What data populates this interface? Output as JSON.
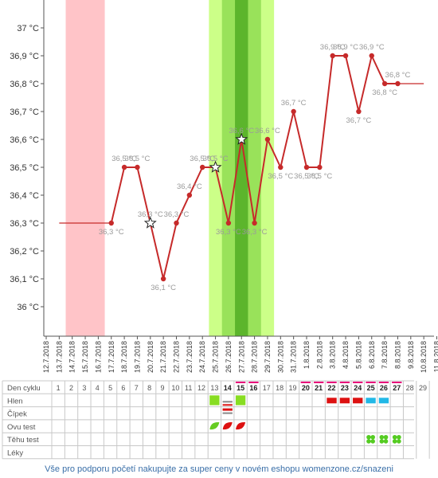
{
  "chart_data": {
    "type": "line",
    "y_axis": {
      "min": 36.0,
      "max": 37.0,
      "unit": "°C",
      "tick_labels": [
        "37 °C",
        "36,9 °C",
        "36,8 °C",
        "36,7 °C",
        "36,6 °C",
        "36,5 °C",
        "36,4 °C",
        "36,3 °C",
        "36,2 °C",
        "36,1 °C",
        "36 °C"
      ]
    },
    "x": [
      "12.7.2018",
      "13.7.2018",
      "14.7.2018",
      "15.7.2018",
      "16.7.2018",
      "17.7.2018",
      "18.7.2018",
      "19.7.2018",
      "20.7.2018",
      "21.7.2018",
      "22.7.2018",
      "23.7.2018",
      "24.7.2018",
      "25.7.2018",
      "26.7.2018",
      "27.7.2018",
      "28.7.2018",
      "29.7.2018",
      "30.7.2018",
      "31.7.2018",
      "1.8.2018",
      "2.8.2018",
      "3.8.2018",
      "4.8.2018",
      "5.8.2018",
      "6.8.2018",
      "7.8.2018",
      "8.8.2018",
      "9.8.2018",
      "10.8.2018",
      "11.8.2018"
    ],
    "temperatures": [
      {
        "date": "17.7.2018",
        "value": 36.3,
        "label": "36,3 °C"
      },
      {
        "date": "18.7.2018",
        "value": 36.5,
        "label": "36,5 °C"
      },
      {
        "date": "19.7.2018",
        "value": 36.5,
        "label": "36,5 °C"
      },
      {
        "date": "20.7.2018",
        "value": 36.3,
        "label": "36,3 °C",
        "marker": "star"
      },
      {
        "date": "21.7.2018",
        "value": 36.1,
        "label": "36,1 °C"
      },
      {
        "date": "22.7.2018",
        "value": 36.3,
        "label": "36,3 °C"
      },
      {
        "date": "23.7.2018",
        "value": 36.4,
        "label": "36,4 °C"
      },
      {
        "date": "24.7.2018",
        "value": 36.5,
        "label": "36,5 °C"
      },
      {
        "date": "25.7.2018",
        "value": 36.5,
        "label": "36,5 °C",
        "marker": "star"
      },
      {
        "date": "26.7.2018",
        "value": 36.3,
        "label": "36,3 °C"
      },
      {
        "date": "27.7.2018",
        "value": 36.6,
        "label": "36,6 °C",
        "marker": "star"
      },
      {
        "date": "28.7.2018",
        "value": 36.3,
        "label": "36,3 °C"
      },
      {
        "date": "29.7.2018",
        "value": 36.6,
        "label": "36,6 °C"
      },
      {
        "date": "30.7.2018",
        "value": 36.5,
        "label": "36,5 °C"
      },
      {
        "date": "31.7.2018",
        "value": 36.7,
        "label": "36,7 °C"
      },
      {
        "date": "1.8.2018",
        "value": 36.5,
        "label": "36,5 °C"
      },
      {
        "date": "2.8.2018",
        "value": 36.5,
        "label": "36,5 °C"
      },
      {
        "date": "3.8.2018",
        "value": 36.9,
        "label": "36,9 °C"
      },
      {
        "date": "4.8.2018",
        "value": 36.9,
        "label": "36,9 °C"
      },
      {
        "date": "5.8.2018",
        "value": 36.7,
        "label": "36,7 °C"
      },
      {
        "date": "6.8.2018",
        "value": 36.9,
        "label": "36,9 °C"
      },
      {
        "date": "7.8.2018",
        "value": 36.8,
        "label": "36,8 °C"
      },
      {
        "date": "8.8.2018",
        "value": 36.8,
        "label": "36,8 °C"
      }
    ],
    "coverline_left": {
      "from": "13.7.2018",
      "to": "17.7.2018",
      "value": 36.3
    },
    "coverline_right": {
      "from": "8.8.2018",
      "to": "10.8.2018",
      "value": 36.8
    },
    "bands": [
      {
        "from": "13.7.2018",
        "to": "15.7.2018",
        "color": "#ffc4c8",
        "kind": "period"
      },
      {
        "from": "24.7.2018",
        "to": "28.7.2018",
        "color": "#ccff88",
        "kind": "fertile"
      },
      {
        "from": "25.7.2018",
        "to": "27.7.2018",
        "color": "#99e25a",
        "kind": "fertile-high"
      },
      {
        "from": "26.7.2018",
        "to": "26.7.2018",
        "color": "#5cb52c",
        "kind": "ovulation"
      }
    ],
    "line_color": "#c62a2a",
    "grid": false
  },
  "table": {
    "rows": [
      "Den cyklu",
      "Hlen",
      "Čípek",
      "Ovu test",
      "Těhu test",
      "Léky"
    ],
    "cycle_days": [
      1,
      2,
      3,
      4,
      5,
      6,
      7,
      8,
      9,
      10,
      11,
      12,
      13,
      14,
      15,
      16,
      17,
      18,
      19,
      20,
      21,
      22,
      23,
      24,
      25,
      26,
      27,
      28,
      29
    ],
    "bold_days": [
      14,
      15,
      16,
      20,
      21,
      22,
      23,
      24,
      25,
      26,
      27
    ],
    "marked_days": [
      15,
      16,
      20,
      21,
      22,
      23,
      24,
      25,
      26,
      27
    ],
    "mark_color": "#e8007a",
    "hlen": [
      {
        "day": 13,
        "color": "#88dd22",
        "type": "square"
      },
      {
        "day": 15,
        "color": "#88dd22",
        "type": "square"
      },
      {
        "day": 22,
        "color": "#dd1111",
        "type": "bar"
      },
      {
        "day": 23,
        "color": "#dd1111",
        "type": "bar"
      },
      {
        "day": 24,
        "color": "#dd1111",
        "type": "bar"
      },
      {
        "day": 25,
        "color": "#22b8e6",
        "type": "bar"
      },
      {
        "day": 26,
        "color": "#22b8e6",
        "type": "bar"
      }
    ],
    "cipek": [
      {
        "day": 14,
        "color": "#dd1111",
        "type": "stripes"
      }
    ],
    "ovu_test": [
      {
        "day": 13,
        "color": "#66cc22"
      },
      {
        "day": 14,
        "color": "#dd1111"
      },
      {
        "day": 15,
        "color": "#dd1111"
      }
    ],
    "tehu_test": [
      {
        "day": 25,
        "color": "#55cc22"
      },
      {
        "day": 26,
        "color": "#55cc22"
      },
      {
        "day": 27,
        "color": "#55cc22"
      }
    ]
  },
  "footer_text": "Vše pro podporu početí nakupujte za super ceny v novém eshopu womenzone.cz/snazeni"
}
